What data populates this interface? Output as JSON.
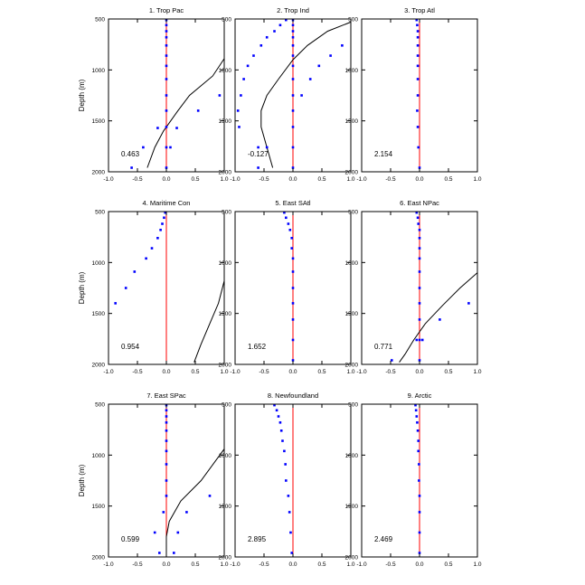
{
  "figure": {
    "ylabel": "Depth (m)",
    "xticks": [
      "-1.0",
      "-0.5",
      "0.0",
      "0.5",
      "1.0"
    ],
    "yticks": [
      "500",
      "1000",
      "1500",
      "2000"
    ]
  },
  "colors": {
    "dots": "#0000ff",
    "zero_line": "#ff0000",
    "curve": "#000000"
  },
  "chart_data": [
    {
      "type": "scatter",
      "title": "1. Trop Pac",
      "annotation": "0.463",
      "xlim": [
        -1,
        1
      ],
      "ylim": [
        2000,
        500
      ],
      "zero_line_x": 0,
      "dots": [
        [
          0,
          510
        ],
        [
          0,
          560
        ],
        [
          0,
          620
        ],
        [
          0,
          680
        ],
        [
          0,
          760
        ],
        [
          0,
          860
        ],
        [
          0,
          960
        ],
        [
          0,
          1090
        ],
        [
          0,
          1250
        ],
        [
          0,
          1400
        ],
        [
          0,
          1560
        ],
        [
          0,
          1760
        ],
        [
          0,
          1960
        ]
      ],
      "dots_extra": [
        [
          0.92,
          1250
        ],
        [
          0.55,
          1400
        ],
        [
          0.18,
          1570
        ],
        [
          -0.15,
          1570
        ],
        [
          -0.4,
          1760
        ],
        [
          0.07,
          1760
        ],
        [
          -0.6,
          1960
        ]
      ],
      "curve": [
        [
          1.0,
          890
        ],
        [
          0.8,
          1060
        ],
        [
          0.4,
          1250
        ],
        [
          0.2,
          1400
        ],
        [
          -0.05,
          1600
        ],
        [
          -0.2,
          1760
        ],
        [
          -0.33,
          1960
        ]
      ]
    },
    {
      "type": "scatter",
      "title": "2. Trop Ind",
      "annotation": "-0.127",
      "xlim": [
        -1,
        1
      ],
      "ylim": [
        2000,
        500
      ],
      "zero_line_x": 0,
      "dots": [
        [
          0,
          510
        ],
        [
          0,
          560
        ],
        [
          0,
          620
        ],
        [
          0,
          680
        ],
        [
          0,
          760
        ],
        [
          0,
          860
        ],
        [
          0,
          960
        ],
        [
          0,
          1090
        ],
        [
          0,
          1250
        ],
        [
          0,
          1400
        ],
        [
          0,
          1560
        ],
        [
          0,
          1760
        ],
        [
          0,
          1960
        ]
      ],
      "dots_extra": [
        [
          -0.12,
          510
        ],
        [
          -0.22,
          560
        ],
        [
          -0.32,
          620
        ],
        [
          -0.45,
          680
        ],
        [
          -0.55,
          760
        ],
        [
          -0.68,
          860
        ],
        [
          -0.78,
          960
        ],
        [
          -0.85,
          1090
        ],
        [
          -0.9,
          1250
        ],
        [
          -0.95,
          1400
        ],
        [
          -0.93,
          1560
        ],
        [
          -0.45,
          1760
        ],
        [
          -0.6,
          1760
        ],
        [
          -0.6,
          1960
        ],
        [
          0.85,
          760
        ],
        [
          0.65,
          860
        ],
        [
          0.45,
          960
        ],
        [
          0.3,
          1090
        ],
        [
          0.15,
          1250
        ]
      ],
      "curve": [
        [
          1.0,
          530
        ],
        [
          0.6,
          620
        ],
        [
          0.25,
          760
        ],
        [
          0.0,
          900
        ],
        [
          -0.25,
          1090
        ],
        [
          -0.45,
          1250
        ],
        [
          -0.55,
          1400
        ],
        [
          -0.55,
          1560
        ],
        [
          -0.45,
          1760
        ],
        [
          -0.35,
          1960
        ]
      ]
    },
    {
      "type": "scatter",
      "title": "3. Trop Atl",
      "annotation": "2.154",
      "xlim": [
        -1,
        1
      ],
      "ylim": [
        2000,
        500
      ],
      "zero_line_x": 0,
      "dots": [
        [
          -0.05,
          510
        ],
        [
          -0.04,
          560
        ],
        [
          -0.03,
          620
        ],
        [
          -0.03,
          680
        ],
        [
          -0.03,
          760
        ],
        [
          -0.03,
          860
        ],
        [
          -0.03,
          960
        ],
        [
          -0.03,
          1090
        ],
        [
          -0.03,
          1250
        ],
        [
          -0.04,
          1400
        ],
        [
          -0.03,
          1560
        ],
        [
          -0.02,
          1760
        ],
        [
          0,
          1960
        ]
      ],
      "dots_extra": [],
      "curve": []
    },
    {
      "type": "scatter",
      "title": "4. Maritime Con",
      "annotation": "0.954",
      "xlim": [
        -1,
        1
      ],
      "ylim": [
        2000,
        500
      ],
      "zero_line_x": 0,
      "dots": [
        [
          -0.02,
          510
        ],
        [
          -0.04,
          560
        ],
        [
          -0.07,
          620
        ],
        [
          -0.1,
          680
        ],
        [
          -0.15,
          760
        ],
        [
          -0.25,
          860
        ],
        [
          -0.35,
          960
        ],
        [
          -0.55,
          1090
        ],
        [
          -0.7,
          1250
        ],
        [
          -0.88,
          1400
        ]
      ],
      "dots_extra": [],
      "curve": [
        [
          1.0,
          1180
        ],
        [
          0.9,
          1400
        ],
        [
          0.75,
          1600
        ],
        [
          0.6,
          1800
        ],
        [
          0.48,
          1980
        ]
      ]
    },
    {
      "type": "scatter",
      "title": "5. East SAtl",
      "annotation": "1.652",
      "xlim": [
        -1,
        1
      ],
      "ylim": [
        2000,
        500
      ],
      "zero_line_x": 0,
      "dots": [
        [
          -0.15,
          510
        ],
        [
          -0.12,
          560
        ],
        [
          -0.08,
          620
        ],
        [
          -0.05,
          680
        ],
        [
          -0.02,
          760
        ],
        [
          -0.02,
          860
        ],
        [
          0,
          960
        ],
        [
          0,
          1090
        ],
        [
          0,
          1250
        ],
        [
          0,
          1400
        ],
        [
          0,
          1560
        ],
        [
          0,
          1760
        ],
        [
          0,
          1960
        ]
      ],
      "dots_extra": [],
      "curve": []
    },
    {
      "type": "scatter",
      "title": "6. East NPac",
      "annotation": "0.771",
      "xlim": [
        -1,
        1
      ],
      "ylim": [
        2000,
        500
      ],
      "zero_line_x": 0,
      "dots": [
        [
          -0.05,
          510
        ],
        [
          -0.03,
          560
        ],
        [
          -0.02,
          620
        ],
        [
          0,
          680
        ],
        [
          0,
          760
        ],
        [
          0,
          860
        ],
        [
          0,
          960
        ],
        [
          0,
          1090
        ],
        [
          0,
          1250
        ],
        [
          0,
          1400
        ],
        [
          0,
          1560
        ],
        [
          0,
          1760
        ],
        [
          0,
          1960
        ]
      ],
      "dots_extra": [
        [
          0.85,
          1400
        ],
        [
          0.35,
          1560
        ],
        [
          -0.05,
          1760
        ],
        [
          0.05,
          1760
        ],
        [
          -0.48,
          1960
        ]
      ],
      "curve": [
        [
          1.0,
          1100
        ],
        [
          0.7,
          1250
        ],
        [
          0.4,
          1420
        ],
        [
          0.1,
          1600
        ],
        [
          -0.1,
          1760
        ],
        [
          -0.25,
          1900
        ],
        [
          -0.35,
          1980
        ]
      ]
    },
    {
      "type": "scatter",
      "title": "7. East SPac",
      "annotation": "0.599",
      "xlim": [
        -1,
        1
      ],
      "ylim": [
        2000,
        500
      ],
      "zero_line_x": 0,
      "dots": [
        [
          0,
          510
        ],
        [
          0,
          560
        ],
        [
          0,
          620
        ],
        [
          0,
          680
        ],
        [
          0,
          760
        ],
        [
          0,
          860
        ],
        [
          0,
          960
        ],
        [
          0,
          1090
        ],
        [
          0,
          1250
        ],
        [
          0,
          1400
        ],
        [
          -0.05,
          1560
        ],
        [
          -0.2,
          1760
        ],
        [
          -0.12,
          1960
        ]
      ],
      "dots_extra": [
        [
          0.75,
          1400
        ],
        [
          0.35,
          1560
        ],
        [
          0.2,
          1760
        ],
        [
          0.13,
          1960
        ]
      ],
      "curve": [
        [
          1.0,
          940
        ],
        [
          0.6,
          1250
        ],
        [
          0.25,
          1450
        ],
        [
          0.05,
          1650
        ],
        [
          0.0,
          1800
        ],
        [
          0.0,
          1990
        ]
      ]
    },
    {
      "type": "scatter",
      "title": "8. Newfoundland",
      "annotation": "2.895",
      "xlim": [
        -1,
        1
      ],
      "ylim": [
        2000,
        500
      ],
      "zero_line_x": 0,
      "dots": [
        [
          -0.32,
          510
        ],
        [
          -0.28,
          560
        ],
        [
          -0.25,
          620
        ],
        [
          -0.22,
          680
        ],
        [
          -0.2,
          760
        ],
        [
          -0.18,
          860
        ],
        [
          -0.15,
          960
        ],
        [
          -0.13,
          1090
        ],
        [
          -0.12,
          1250
        ],
        [
          -0.08,
          1400
        ],
        [
          -0.06,
          1560
        ],
        [
          -0.04,
          1760
        ],
        [
          -0.02,
          1960
        ]
      ],
      "dots_extra": [],
      "curve": []
    },
    {
      "type": "scatter",
      "title": "9. Arctic",
      "annotation": "2.469",
      "xlim": [
        -1,
        1
      ],
      "ylim": [
        2000,
        500
      ],
      "zero_line_x": 0,
      "dots": [
        [
          -0.07,
          510
        ],
        [
          -0.06,
          560
        ],
        [
          -0.05,
          620
        ],
        [
          -0.04,
          680
        ],
        [
          -0.03,
          760
        ],
        [
          -0.02,
          860
        ],
        [
          -0.02,
          960
        ],
        [
          -0.01,
          1090
        ],
        [
          -0.01,
          1250
        ],
        [
          0,
          1400
        ],
        [
          0,
          1560
        ],
        [
          0,
          1760
        ],
        [
          0,
          1960
        ]
      ],
      "dots_extra": [],
      "curve": []
    }
  ]
}
